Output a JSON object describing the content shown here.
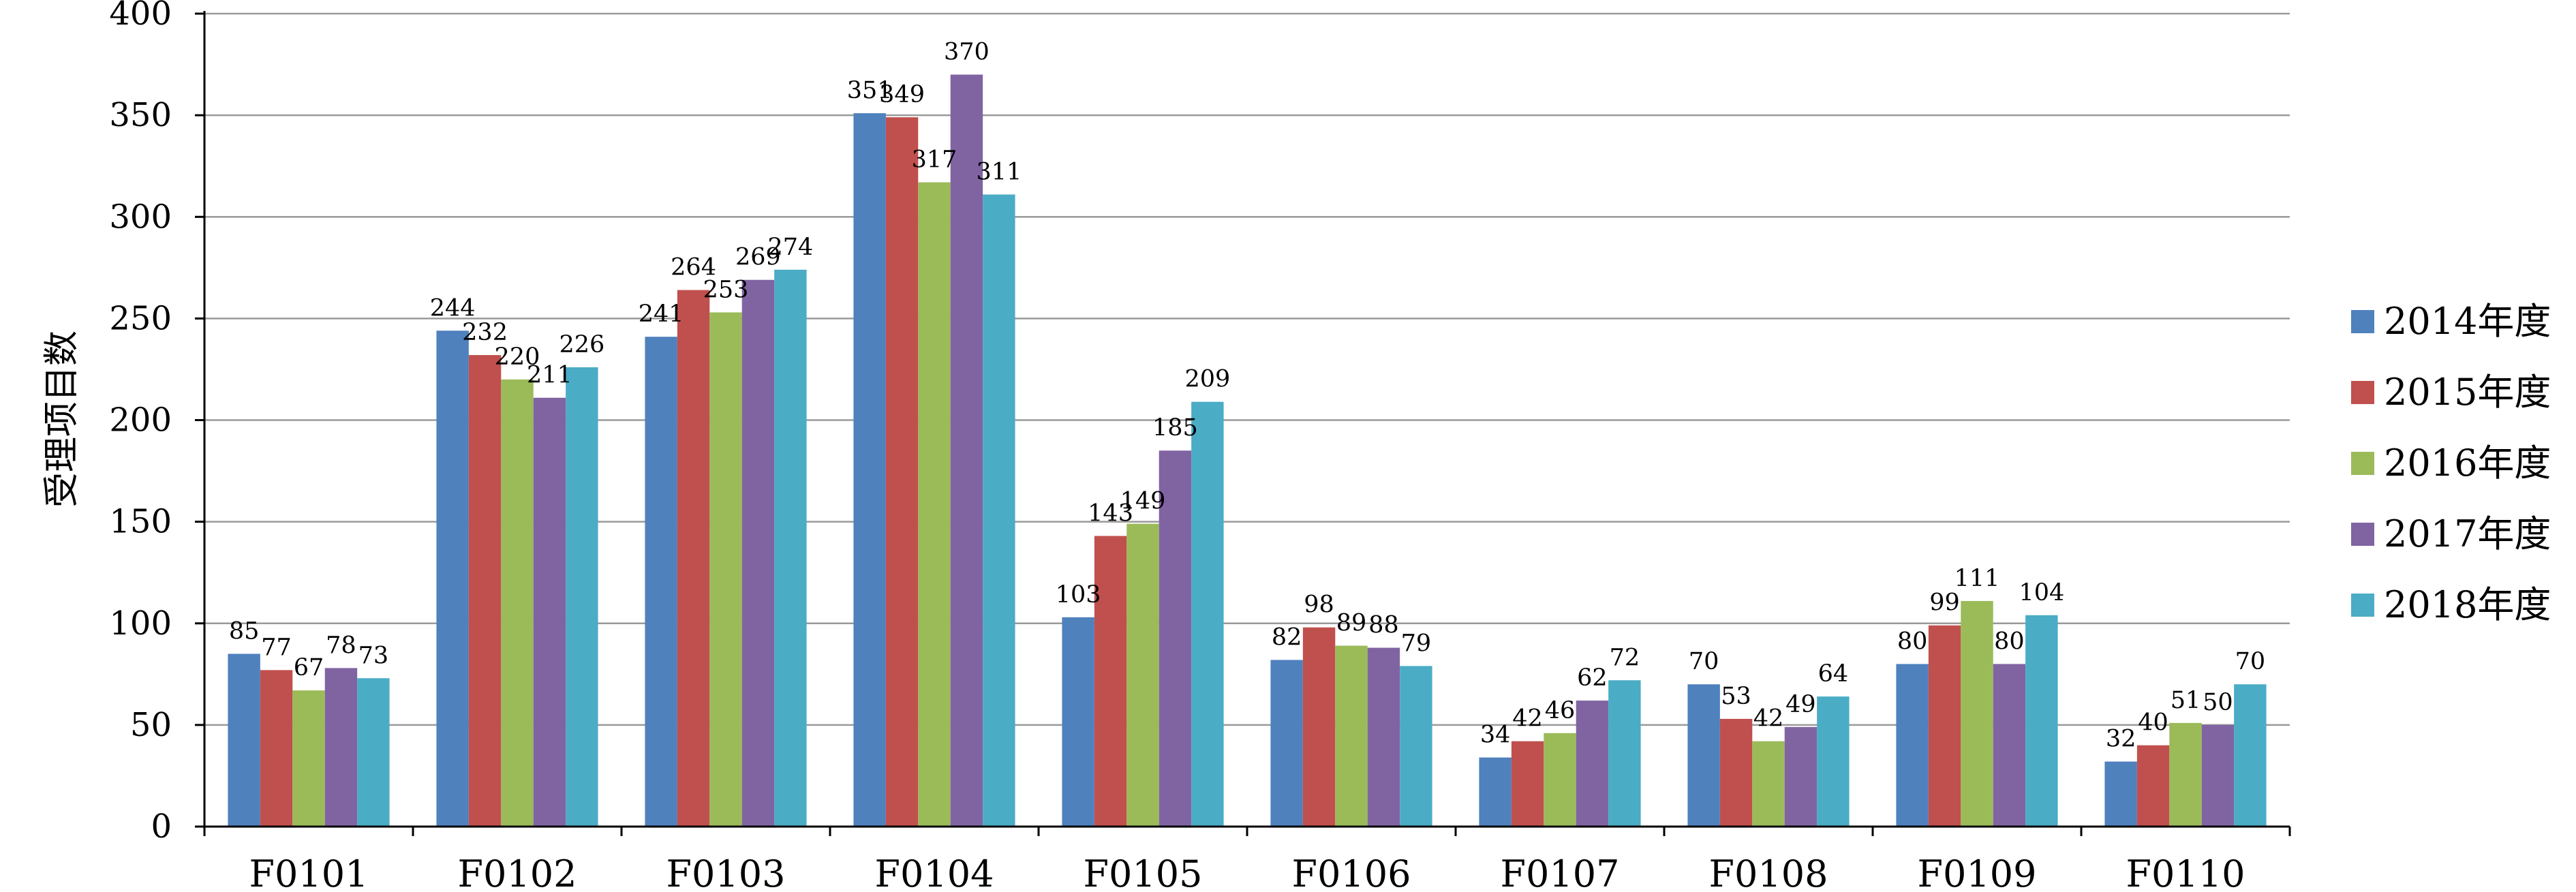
{
  "chart_data": {
    "type": "bar",
    "title": "",
    "xlabel": "",
    "ylabel": "受理项目数",
    "ylim": [
      0,
      400
    ],
    "yticks": [
      0,
      50,
      100,
      150,
      200,
      250,
      300,
      350,
      400
    ],
    "grid": true,
    "legend_position": "right",
    "categories": [
      "F0101",
      "F0102",
      "F0103",
      "F0104",
      "F0105",
      "F0106",
      "F0107",
      "F0108",
      "F0109",
      "F0110"
    ],
    "series": [
      {
        "name": "2014年度",
        "color": "#4F81BD",
        "values": [
          85,
          244,
          241,
          351,
          103,
          82,
          34,
          70,
          80,
          32
        ]
      },
      {
        "name": "2015年度",
        "color": "#C0504D",
        "values": [
          77,
          232,
          264,
          349,
          143,
          98,
          42,
          53,
          99,
          40
        ]
      },
      {
        "name": "2016年度",
        "color": "#9BBB59",
        "values": [
          67,
          220,
          253,
          317,
          149,
          89,
          46,
          42,
          111,
          51
        ]
      },
      {
        "name": "2017年度",
        "color": "#8064A2",
        "values": [
          78,
          211,
          269,
          370,
          185,
          88,
          62,
          49,
          80,
          50
        ]
      },
      {
        "name": "2018年度",
        "color": "#4BACC6",
        "values": [
          73,
          226,
          274,
          311,
          209,
          79,
          72,
          64,
          104,
          70
        ]
      }
    ]
  }
}
